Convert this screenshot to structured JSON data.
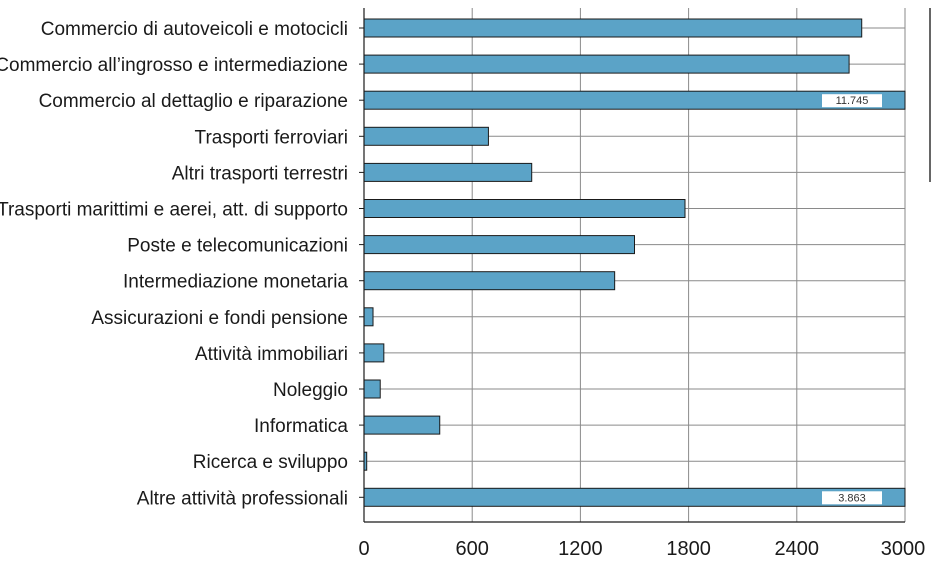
{
  "chart_data": {
    "type": "bar",
    "orientation": "horizontal",
    "categories": [
      "Commercio di autoveicoli e motocicli",
      "Commercio all’ingrosso e intermediazione",
      "Commercio al dettaglio e riparazione",
      "Trasporti ferroviari",
      "Altri trasporti terrestri",
      "Trasporti marittimi e aerei, att. di supporto",
      "Poste e telecomunicazioni",
      "Intermediazione monetaria",
      "Assicurazioni e fondi pensione",
      "Attività immobiliari",
      "Noleggio",
      "Informatica",
      "Ricerca e sviluppo",
      "Altre attività professionali"
    ],
    "values": [
      2760,
      2690,
      11745,
      690,
      930,
      1780,
      1500,
      1390,
      50,
      110,
      90,
      420,
      15,
      3863
    ],
    "data_labels": [
      "",
      "",
      "11.745",
      "",
      "",
      "",
      "",
      "",
      "",
      "",
      "",
      "",
      "",
      "3.863"
    ],
    "xlim": [
      0,
      3000
    ],
    "xticks": [
      0,
      600,
      1200,
      1800,
      2400,
      3000
    ],
    "xtick_labels": [
      "0",
      "600",
      "1200",
      "1800",
      "2400",
      "3000"
    ],
    "title": "",
    "xlabel": "",
    "ylabel": "",
    "grid": true,
    "colors": {
      "bar": "#5ba3c7",
      "bar_edge": "#1a1a1a",
      "grid": "#8a8a8a",
      "axis": "#1a1a1a"
    }
  }
}
